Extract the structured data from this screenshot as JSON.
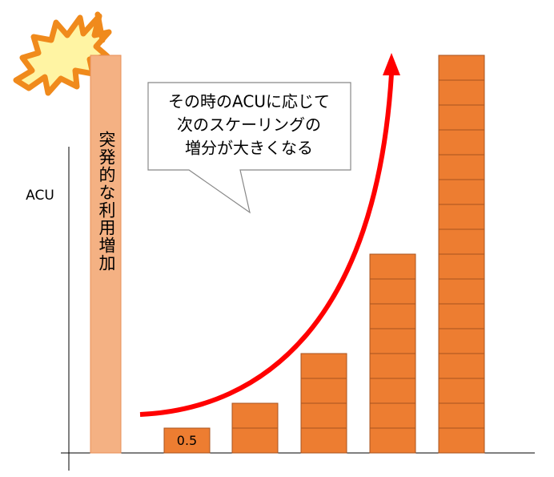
{
  "chart_data": {
    "type": "bar",
    "y_axis_label": "ACU",
    "spike": {
      "label": "突発的な利用増加",
      "value": 8
    },
    "bars": [
      {
        "value": 0.5,
        "label": "0.5"
      },
      {
        "value": 1
      },
      {
        "value": 2
      },
      {
        "value": 4
      },
      {
        "value": 8
      }
    ],
    "callout": [
      "その時のACUに応じて",
      "次のスケーリングの",
      "増分が大きくなる"
    ],
    "bar_color": "#ed7d31",
    "spike_color": "#f4b183",
    "arrow_color": "#ff0000"
  }
}
